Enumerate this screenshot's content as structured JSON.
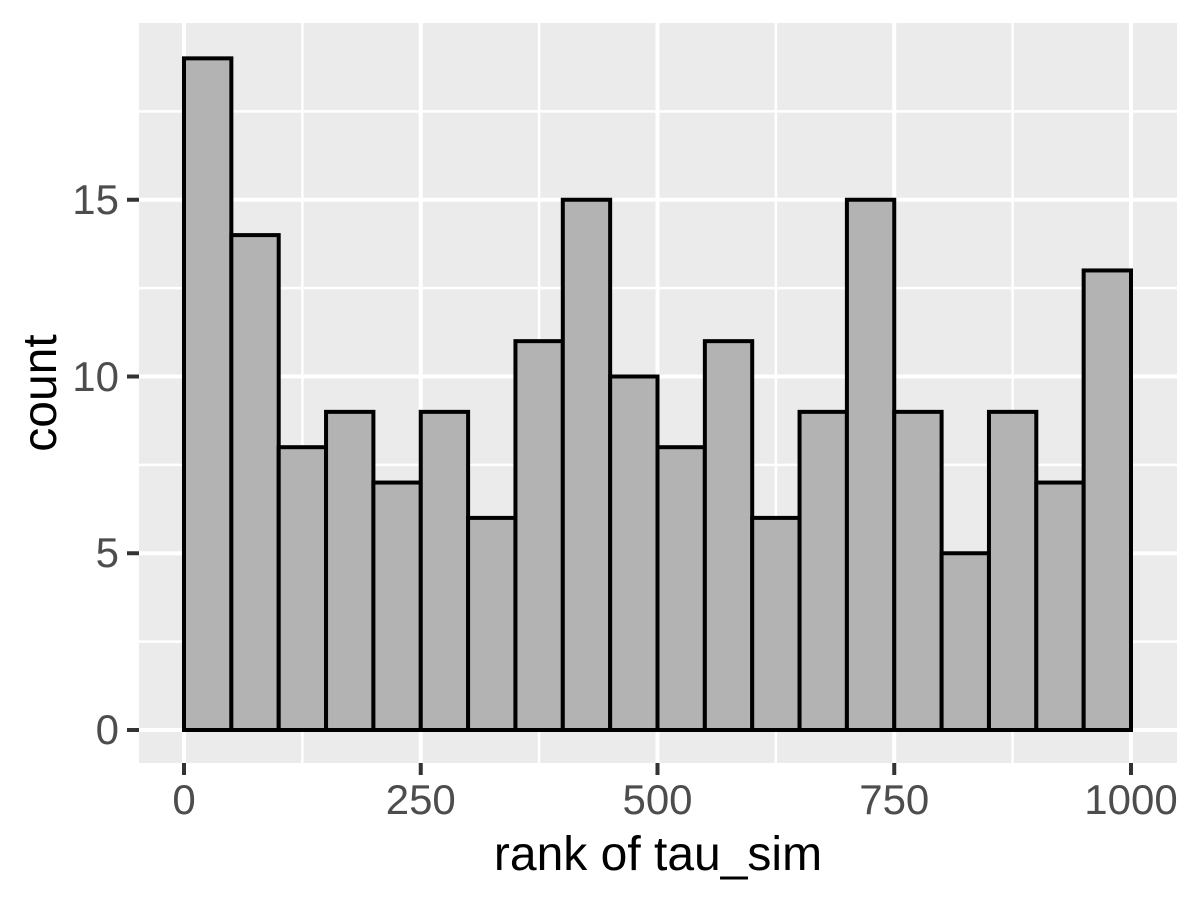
{
  "chart_data": {
    "type": "bar",
    "variant": "histogram",
    "title": "",
    "xlabel": "rank of tau_sim",
    "ylabel": "count",
    "bin_start": 0,
    "bin_width": 50,
    "counts": [
      19,
      14,
      8,
      9,
      7,
      9,
      6,
      11,
      15,
      10,
      8,
      11,
      6,
      9,
      15,
      9,
      5,
      9,
      7,
      13
    ],
    "xlim": [
      0,
      1000
    ],
    "ylim": [
      0,
      19
    ],
    "x_ticks": {
      "values": [
        0,
        250,
        500,
        750,
        1000
      ],
      "labels": [
        "0",
        "250",
        "500",
        "750",
        "1000"
      ]
    },
    "y_ticks": {
      "values": [
        0,
        5,
        10,
        15
      ],
      "labels": [
        "0",
        "5",
        "10",
        "15"
      ]
    },
    "x_minor_gridlines": [
      125,
      375,
      625,
      875
    ],
    "y_minor_gridlines": [
      2.5,
      7.5,
      12.5,
      17.5
    ],
    "grid": "on",
    "legend_position": "none",
    "colors": {
      "figure_background": "#ffffff",
      "panel_background": "#ebebeb",
      "gridline": "#ffffff",
      "bar_fill": "#b3b3b3",
      "bar_stroke": "#000000",
      "tick_mark": "#333333",
      "tick_label": "#4d4d4d",
      "axis_title": "#000000"
    }
  }
}
